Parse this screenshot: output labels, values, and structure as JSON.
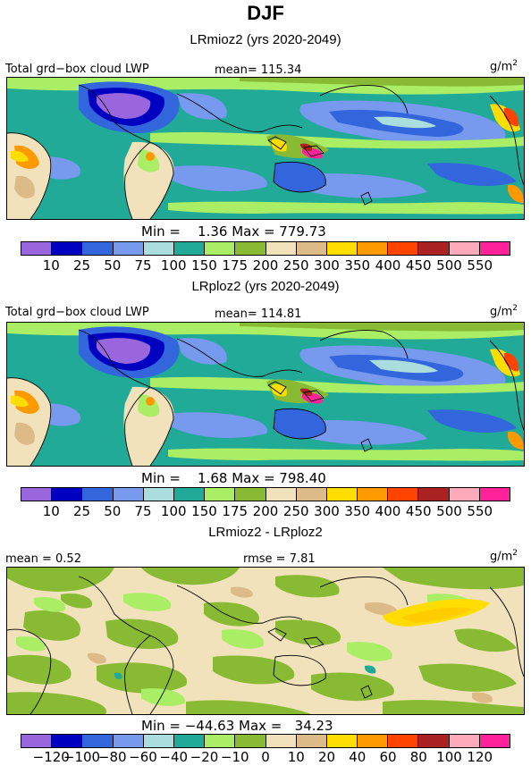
{
  "title": "DJF",
  "palette_abs": [
    "#9966dd",
    "#0000c0",
    "#3366dd",
    "#7799ee",
    "#aadddd",
    "#22aa99",
    "#aaee66",
    "#88bb33",
    "#f2e2bb",
    "#ddbb88",
    "#ffdd00",
    "#ff9900",
    "#ff4400",
    "#aa2222",
    "#ffaabb",
    "#ff2299"
  ],
  "palette_diff": [
    "#9966dd",
    "#0000c0",
    "#3366dd",
    "#7799ee",
    "#aadddd",
    "#22aa99",
    "#aaee66",
    "#88bb33",
    "#f2e2bb",
    "#ddbb88",
    "#ffdd00",
    "#ff9900",
    "#ff4400",
    "#aa2222",
    "#ffaabb",
    "#ff2299"
  ],
  "panels": [
    {
      "subtitle": "LRmioz2 (yrs 2020-2049)",
      "left_label": "Total grd−box cloud LWP",
      "center_label": "mean= 115.34",
      "units_base": "g/m",
      "units_sup": "2",
      "minmax": "Min =    1.36 Max = 779.73",
      "ticks": [
        "10",
        "25",
        "50",
        "75",
        "100",
        "150",
        "175",
        "200",
        "250",
        "300",
        "350",
        "400",
        "450",
        "500",
        "550"
      ]
    },
    {
      "subtitle": "LRploz2 (yrs 2020-2049)",
      "left_label": "Total grd−box cloud LWP",
      "center_label": "mean= 114.81",
      "units_base": "g/m",
      "units_sup": "2",
      "minmax": "Min =    1.68 Max = 798.40",
      "ticks": [
        "10",
        "25",
        "50",
        "75",
        "100",
        "150",
        "175",
        "200",
        "250",
        "300",
        "350",
        "400",
        "450",
        "500",
        "550"
      ]
    },
    {
      "subtitle": "LRmioz2 - LRploz2",
      "left_label": "mean =    0.52",
      "center_label": "rmse =    7.81",
      "units_base": "g/m",
      "units_sup": "2",
      "minmax": "Min = −44.63 Max =   34.23",
      "ticks": [
        "−120",
        "−100",
        "−80",
        "−60",
        "−40",
        "−20",
        "−10",
        "0",
        "10",
        "20",
        "40",
        "60",
        "80",
        "100",
        "120"
      ]
    }
  ]
}
